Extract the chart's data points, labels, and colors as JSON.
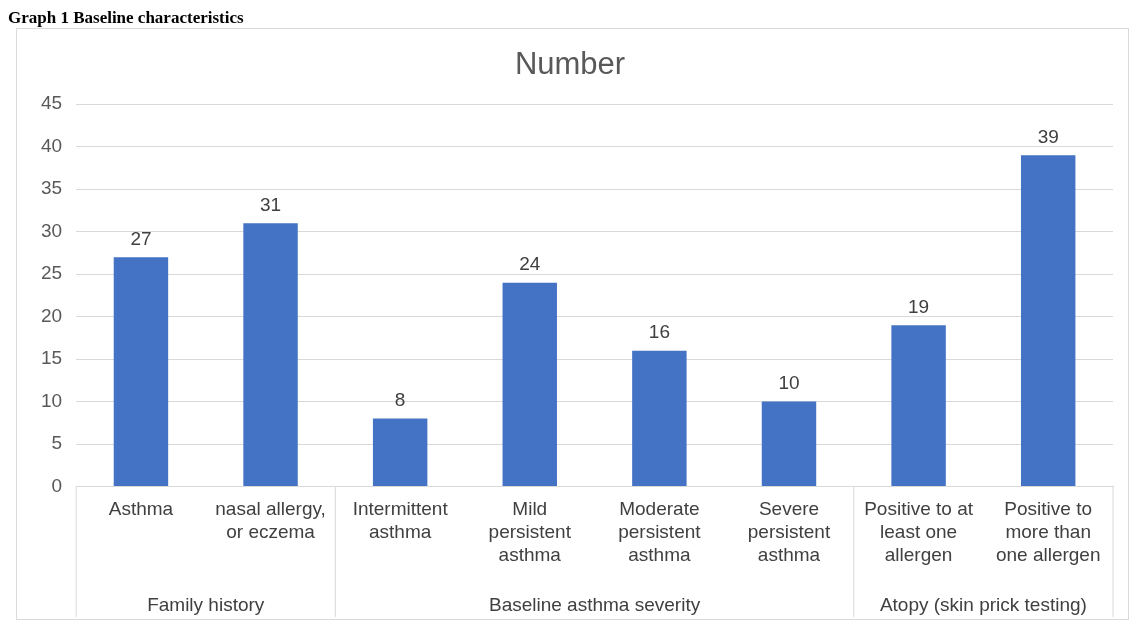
{
  "chart_data": {
    "type": "bar",
    "title": "Number",
    "categories": [
      "Asthma",
      "nasal allergy, or eczema",
      "Intermittent asthma",
      "Mild persistent asthma",
      "Moderate persistent asthma",
      "Severe persistent asthma",
      "Positive to at least one allergen",
      "Positive to more than one allergen"
    ],
    "values": [
      27,
      31,
      8,
      24,
      16,
      10,
      19,
      39
    ],
    "color": "#4472c4",
    "data_labels": true,
    "ylim": [
      0,
      45
    ],
    "yticks": [
      0,
      5,
      10,
      15,
      20,
      25,
      30,
      35,
      40,
      45
    ],
    "grid": "y",
    "legend": false,
    "annotations": [
      "Graph 1 Baseline characteristics",
      "Family history",
      "Baseline asthma severity",
      "Atopy (skin prick testing)"
    ]
  }
}
